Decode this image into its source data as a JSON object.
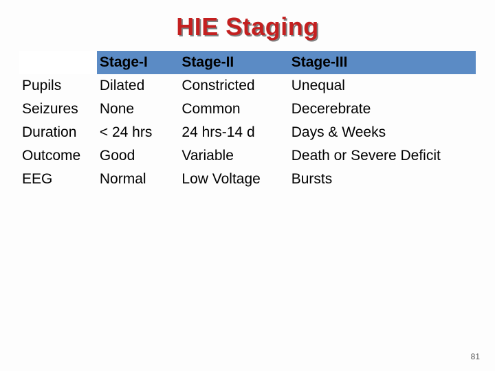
{
  "title": "HIE Staging",
  "title_color": "#c42020",
  "title_shadow": "#808080",
  "header_bg": "#5b8bc5",
  "columns": [
    "",
    "Stage-I",
    "Stage-II",
    "Stage-III"
  ],
  "rows": [
    [
      "Pupils",
      "Dilated",
      "Constricted",
      "Unequal"
    ],
    [
      "Seizures",
      "None",
      "Common",
      "Decerebrate"
    ],
    [
      "Duration",
      " < 24 hrs",
      " 24 hrs-14 d",
      " Days & Weeks"
    ],
    [
      "Outcome",
      "Good",
      "Variable",
      " Death or Severe Deficit"
    ],
    [
      "EEG",
      "Normal",
      " Low Voltage",
      "Bursts"
    ]
  ],
  "page_number": "81"
}
